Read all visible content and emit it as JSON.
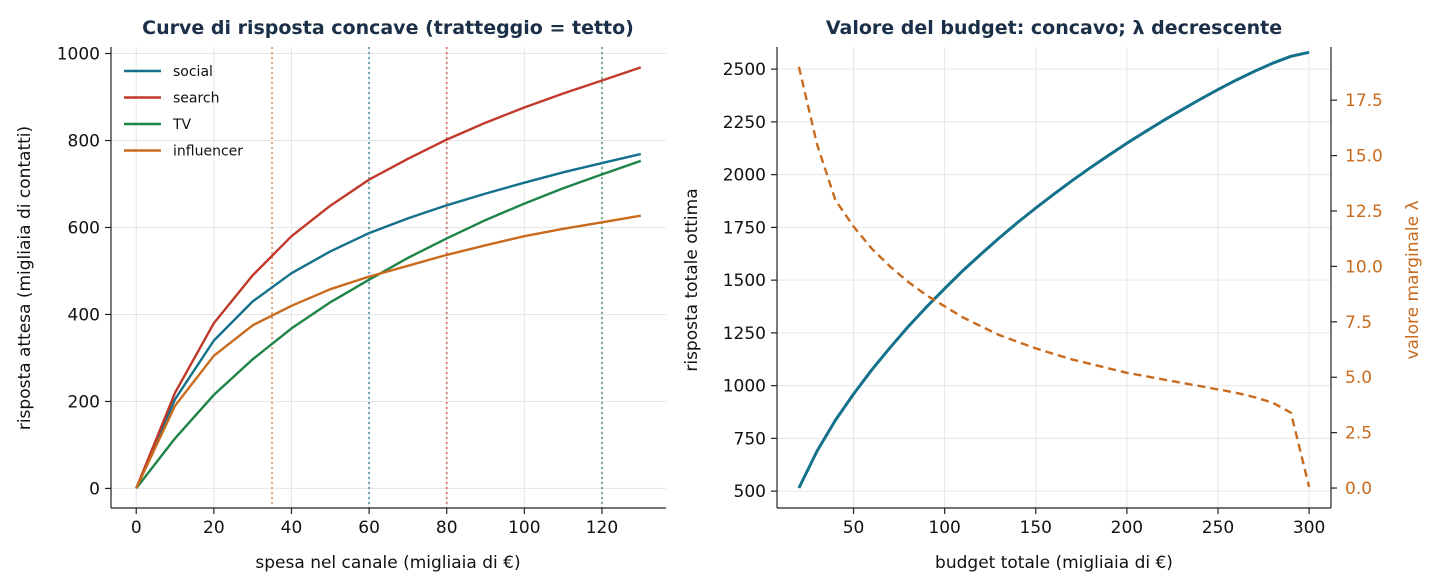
{
  "chart_data": [
    {
      "type": "line",
      "title": "Curve di risposta concave (tratteggio = tetto)",
      "xlabel": "spesa nel canale (migliaia di €)",
      "ylabel": "risposta attesa (migliaia di contatti)",
      "xlim": [
        -6.5,
        136.5
      ],
      "ylim": [
        -45,
        1015
      ],
      "xticks": [
        0,
        20,
        40,
        60,
        80,
        100,
        120
      ],
      "yticks": [
        0,
        200,
        400,
        600,
        800,
        1000
      ],
      "grid": true,
      "legend": "top-left",
      "x": [
        0,
        10,
        20,
        30,
        40,
        50,
        60,
        70,
        80,
        90,
        100,
        110,
        120,
        130
      ],
      "series": [
        {
          "name": "social",
          "color": "#13718c",
          "values": [
            0,
            205,
            340,
            430,
            495,
            545,
            587,
            621,
            651,
            678,
            703,
            727,
            748,
            769
          ],
          "cap": 60
        },
        {
          "name": "search",
          "color": "#c0392b",
          "values": [
            0,
            220,
            380,
            490,
            580,
            650,
            710,
            758,
            802,
            841,
            876,
            908,
            938,
            968
          ],
          "cap": 80
        },
        {
          "name": "TV",
          "color": "#1e8449",
          "values": [
            0,
            115,
            215,
            297,
            368,
            428,
            480,
            530,
            575,
            617,
            655,
            690,
            722,
            753
          ],
          "cap": 120
        },
        {
          "name": "influencer",
          "color": "#c86b1e",
          "values": [
            0,
            190,
            305,
            375,
            420,
            458,
            487,
            512,
            537,
            559,
            580,
            597,
            612,
            627
          ],
          "cap": 35
        }
      ]
    },
    {
      "type": "line",
      "title": "Valore del budget: concavo; λ decrescente",
      "xlabel": "budget totale (migliaia di €)",
      "ylabel": "risposta totale ottima",
      "ylabel_right": "valore marginale λ",
      "xlim": [
        8,
        312
      ],
      "ylim": [
        420,
        2605
      ],
      "ylim_right": [
        -0.9,
        19.9
      ],
      "xticks": [
        50,
        100,
        150,
        200,
        250,
        300
      ],
      "yticks": [
        500,
        750,
        1000,
        1250,
        1500,
        1750,
        2000,
        2250,
        2500
      ],
      "yticks_right": [
        0.0,
        2.5,
        5.0,
        7.5,
        10.0,
        12.5,
        15.0,
        17.5
      ],
      "yticks_right_labels": [
        "0.0",
        "2.5",
        "5.0",
        "7.5",
        "10.0",
        "12.5",
        "15.0",
        "17.5"
      ],
      "grid": true,
      "series": [
        {
          "name": "risposta totale ottima",
          "axis": "left",
          "style": "solid",
          "color": "#13718c",
          "x": [
            20,
            30,
            40,
            50,
            60,
            70,
            80,
            90,
            100,
            110,
            120,
            130,
            140,
            150,
            160,
            170,
            180,
            190,
            200,
            210,
            220,
            230,
            240,
            250,
            260,
            270,
            280,
            290,
            300
          ],
          "values": [
            515,
            690,
            835,
            960,
            1075,
            1180,
            1280,
            1372,
            1460,
            1545,
            1624,
            1700,
            1773,
            1842,
            1908,
            1972,
            2033,
            2092,
            2149,
            2203,
            2256,
            2307,
            2356,
            2403,
            2448,
            2490,
            2528,
            2561,
            2580
          ]
        },
        {
          "name": "valore marginale λ",
          "axis": "right",
          "style": "dashed",
          "color": "#c86b1e",
          "x": [
            20,
            30,
            40,
            50,
            60,
            70,
            80,
            90,
            100,
            110,
            120,
            130,
            140,
            150,
            160,
            170,
            180,
            190,
            200,
            210,
            220,
            230,
            240,
            250,
            260,
            270,
            280,
            290,
            300
          ],
          "values": [
            19.0,
            15.5,
            13.0,
            11.8,
            10.8,
            10.0,
            9.3,
            8.7,
            8.2,
            7.7,
            7.3,
            6.9,
            6.6,
            6.3,
            6.05,
            5.8,
            5.6,
            5.4,
            5.2,
            5.05,
            4.9,
            4.75,
            4.6,
            4.45,
            4.3,
            4.1,
            3.85,
            3.4,
            0.05
          ]
        }
      ]
    }
  ]
}
